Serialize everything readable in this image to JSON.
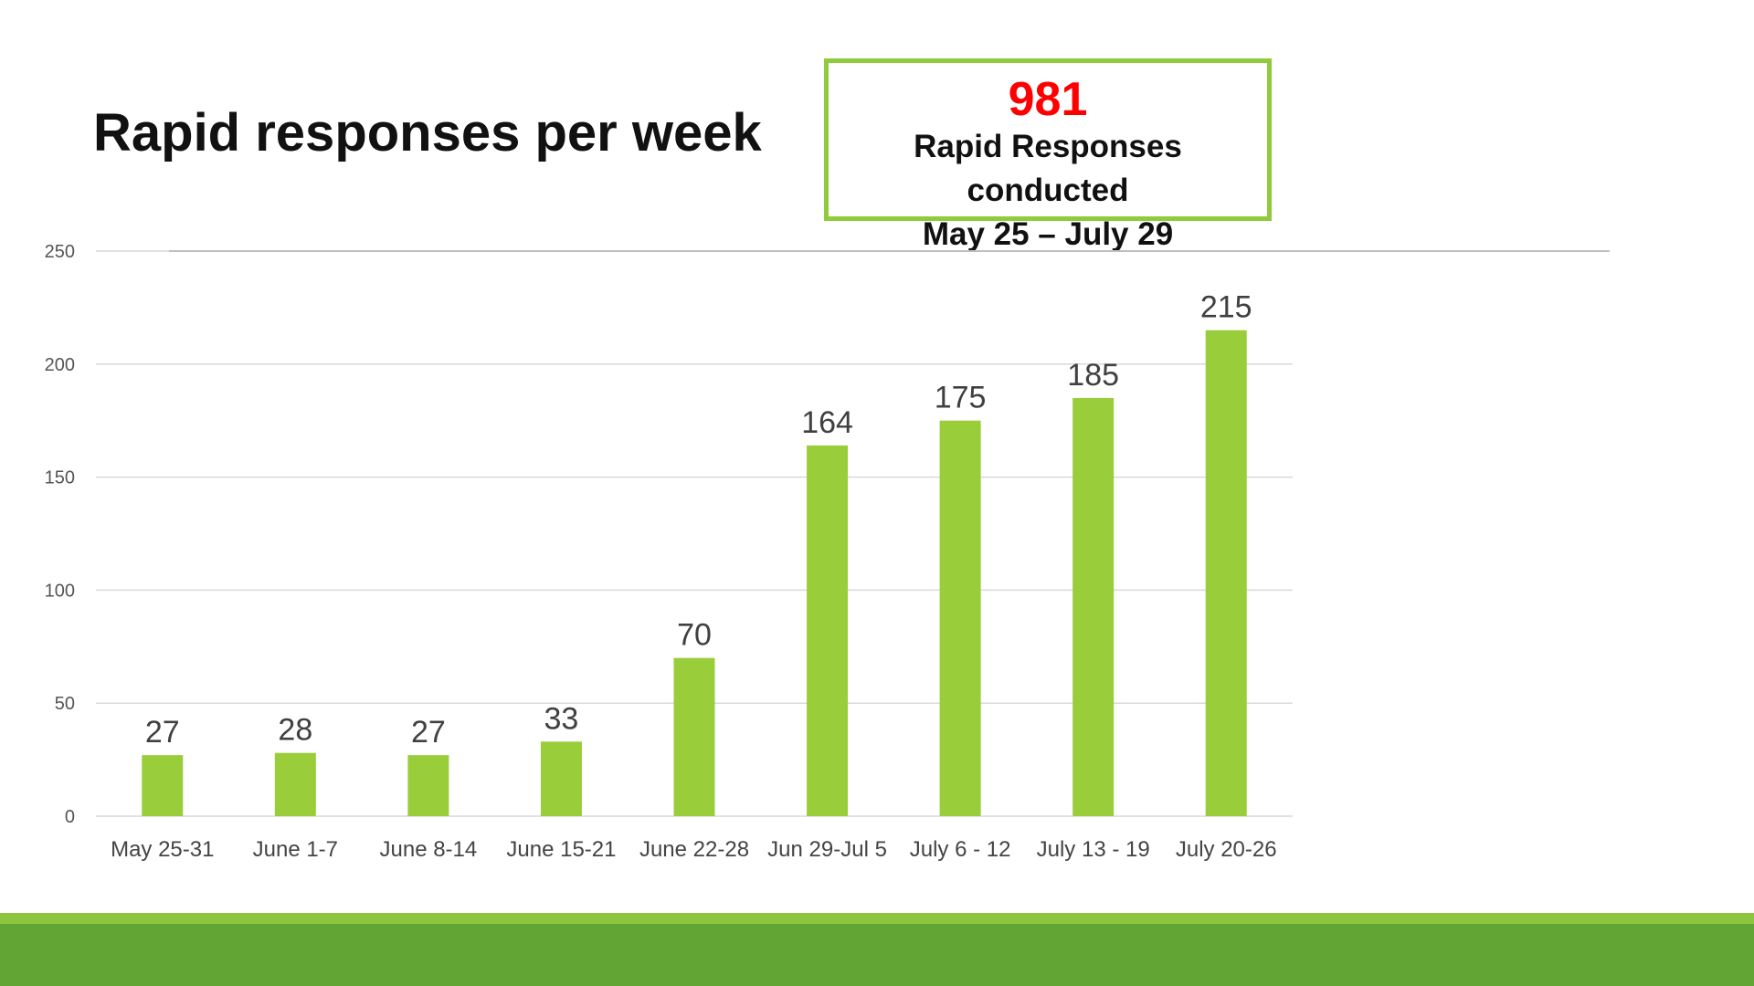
{
  "slide": {
    "title": "Rapid responses per week"
  },
  "summary": {
    "total": "981",
    "line1": "Rapid Responses conducted",
    "line2": "May 25 – July 29",
    "border_color": "#8fcb3c",
    "total_color": "#ff0000"
  },
  "chart_data": {
    "type": "bar",
    "categories": [
      "May 25-31",
      "June 1-7",
      "June 8-14",
      "June 15-21",
      "June 22-28",
      "Jun 29-Jul 5",
      "July 6 - 12",
      "July 13 - 19",
      "July 20-26"
    ],
    "values": [
      27,
      28,
      27,
      33,
      70,
      164,
      175,
      185,
      215
    ],
    "yticks": [
      0,
      50,
      100,
      150,
      200,
      250
    ],
    "ylim": [
      0,
      250
    ],
    "grid": true,
    "data_labels": true,
    "bar_color": "#9acd3a"
  },
  "footer": {
    "light_color": "#8cc63f",
    "dark_color": "#62a535"
  }
}
